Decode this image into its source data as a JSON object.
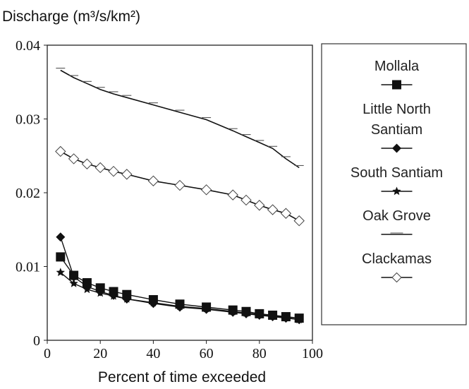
{
  "chart_data": {
    "type": "line",
    "title": "",
    "ylabel": "Discharge (m³/s/km²)",
    "xlabel": "Percent of time exceeded",
    "xlim": [
      0,
      100
    ],
    "ylim": [
      0,
      0.04
    ],
    "xticks": [
      0,
      20,
      40,
      60,
      80,
      100
    ],
    "xtick_labels": [
      "0",
      "20",
      "40",
      "60",
      "80",
      "100"
    ],
    "yticks": [
      0,
      0.01,
      0.02,
      0.03,
      0.04
    ],
    "ytick_labels": [
      "0",
      "0.01",
      "0.02",
      "0.03",
      "0.04"
    ],
    "grid": false,
    "legend_position": "right",
    "series": [
      {
        "name": "Mollala",
        "marker": "square",
        "color": "#111111",
        "x": [
          5,
          10,
          15,
          20,
          25,
          30,
          40,
          50,
          60,
          70,
          75,
          80,
          85,
          90,
          95
        ],
        "y": [
          0.0113,
          0.0088,
          0.0078,
          0.0071,
          0.0066,
          0.0062,
          0.0055,
          0.0049,
          0.0045,
          0.0041,
          0.0039,
          0.0036,
          0.0034,
          0.0032,
          0.003
        ]
      },
      {
        "name": "Little North Santiam",
        "legend_lines": [
          "Little North",
          "Santiam"
        ],
        "marker": "diamond",
        "color": "#111111",
        "x": [
          5,
          10,
          15,
          20,
          25,
          30,
          40,
          50,
          60,
          70,
          75,
          80,
          85,
          90,
          95
        ],
        "y": [
          0.014,
          0.0086,
          0.0073,
          0.0066,
          0.0061,
          0.0056,
          0.005,
          0.0045,
          0.0042,
          0.0038,
          0.0036,
          0.0034,
          0.0032,
          0.003,
          0.0028
        ]
      },
      {
        "name": "South Santiam",
        "marker": "star",
        "color": "#111111",
        "x": [
          5,
          10,
          15,
          20,
          25,
          30,
          40,
          50,
          60,
          70,
          75,
          80,
          85,
          90,
          95
        ],
        "y": [
          0.0092,
          0.0077,
          0.0069,
          0.0064,
          0.006,
          0.0056,
          0.0051,
          0.0046,
          0.0043,
          0.0039,
          0.0037,
          0.0035,
          0.0033,
          0.0031,
          0.0028
        ]
      },
      {
        "name": "Oak Grove",
        "marker": "dash",
        "color": "#111111",
        "x": [
          5,
          10,
          15,
          20,
          25,
          30,
          40,
          50,
          60,
          70,
          75,
          80,
          85,
          90,
          95
        ],
        "y": [
          0.0366,
          0.0356,
          0.0348,
          0.034,
          0.0334,
          0.0329,
          0.0319,
          0.0309,
          0.0299,
          0.0284,
          0.0276,
          0.0268,
          0.026,
          0.0246,
          0.0234
        ]
      },
      {
        "name": "Clackamas",
        "marker": "open-diamond",
        "color": "#111111",
        "x": [
          5,
          10,
          15,
          20,
          25,
          30,
          40,
          50,
          60,
          70,
          75,
          80,
          85,
          90,
          95
        ],
        "y": [
          0.0256,
          0.0246,
          0.0239,
          0.0234,
          0.0229,
          0.0225,
          0.0216,
          0.021,
          0.0204,
          0.0197,
          0.019,
          0.0183,
          0.0177,
          0.0172,
          0.0162
        ]
      }
    ]
  }
}
